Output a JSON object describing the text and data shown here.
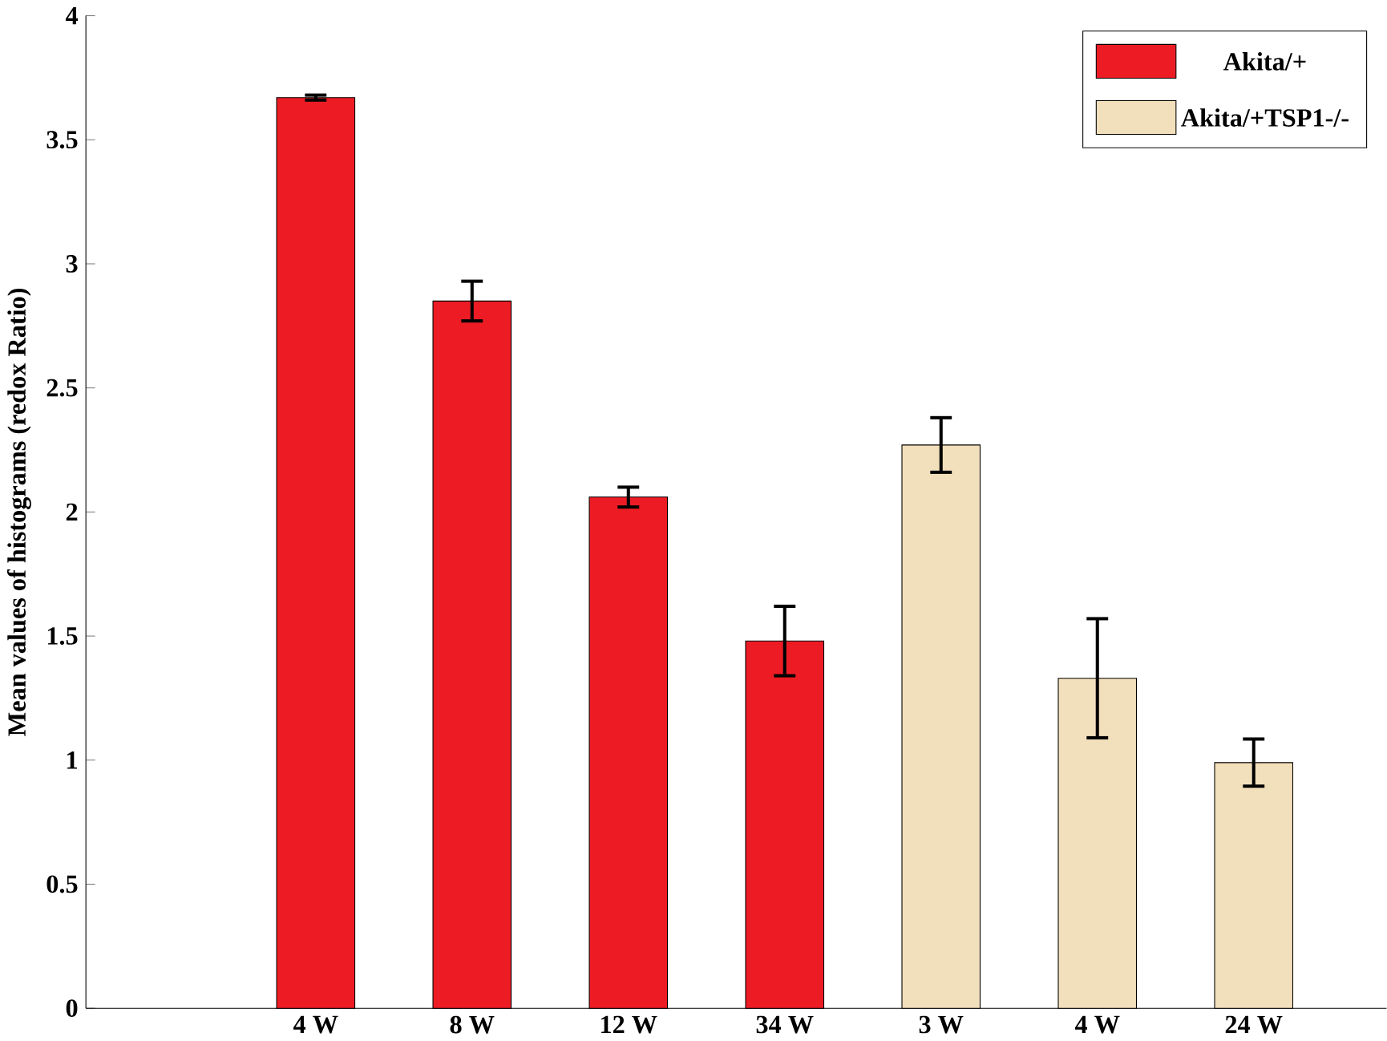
{
  "chart_data": {
    "type": "bar",
    "ylabel": "Mean values of histograms (redox Ratio)",
    "categories": [
      "4 W",
      "8 W",
      "12 W",
      "34 W",
      "3 W",
      "4 W",
      "24 W"
    ],
    "series": [
      {
        "name": "Akita/+",
        "color": "#ed1c24",
        "values": [
          3.67,
          2.85,
          2.06,
          1.48,
          null,
          null,
          null
        ],
        "errors": [
          0.01,
          0.08,
          0.04,
          0.14,
          null,
          null,
          null
        ]
      },
      {
        "name": "Akita/+TSP1-/-",
        "color": "#f2dfbb",
        "values": [
          null,
          null,
          null,
          null,
          2.27,
          1.33,
          0.99
        ],
        "errors": [
          null,
          null,
          null,
          null,
          0.11,
          0.24,
          0.095
        ]
      }
    ],
    "ylim": [
      0,
      4
    ],
    "yticks": [
      0,
      0.5,
      1,
      1.5,
      2,
      2.5,
      3,
      3.5,
      4
    ],
    "legend": "top right"
  }
}
